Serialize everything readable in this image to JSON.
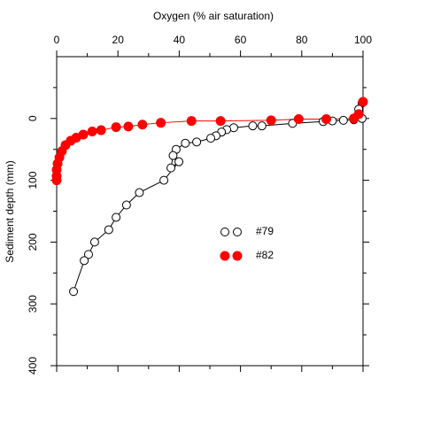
{
  "chart_data": {
    "type": "scatter-line",
    "x_label": "Oxygen (% air saturation)",
    "y_label": "Sediment depth (mm)",
    "xlim": [
      0,
      100
    ],
    "xticks": [
      0,
      20,
      40,
      60,
      80,
      100
    ],
    "xminor": [
      10,
      30,
      50,
      70,
      90
    ],
    "ylim": [
      400,
      -100
    ],
    "yticks": [
      0,
      100,
      200,
      300,
      400
    ],
    "yminor": [
      -50,
      50,
      150,
      250,
      350
    ],
    "series": [
      {
        "name": "#79",
        "color": "#000000",
        "marker": "open",
        "x": [
          99.7,
          98.6,
          99.7,
          97,
          93.6,
          90,
          87,
          77,
          67,
          64,
          57.8,
          55.5,
          53.8,
          52,
          50.3,
          45.7,
          42,
          39,
          38,
          37.3,
          39.9,
          35,
          27,
          22.8,
          19.4,
          17,
          12.4,
          10.4,
          9,
          5.5
        ],
        "values": [
          -25,
          -15,
          0,
          2,
          3,
          4,
          5,
          8,
          12,
          12,
          15,
          18,
          22,
          28,
          32,
          38,
          40,
          50,
          60,
          80,
          70,
          100,
          120,
          140,
          160,
          180,
          200,
          220,
          230,
          280
        ]
      },
      {
        "name": "#82",
        "color": "#ff0000",
        "marker": "filled",
        "x": [
          100,
          98.6,
          97,
          88,
          79,
          70,
          53.5,
          44,
          34,
          28,
          23.4,
          19.4,
          14.5,
          11.6,
          8.7,
          6.4,
          4.6,
          2.9,
          1.7,
          0.9,
          0.3,
          0,
          0,
          0
        ],
        "values": [
          -27,
          -7,
          0,
          1,
          1,
          3,
          4,
          4,
          7,
          10,
          13,
          14,
          19,
          21,
          26,
          31,
          36,
          43,
          53,
          63,
          73,
          83,
          93,
          100
        ]
      }
    ]
  }
}
